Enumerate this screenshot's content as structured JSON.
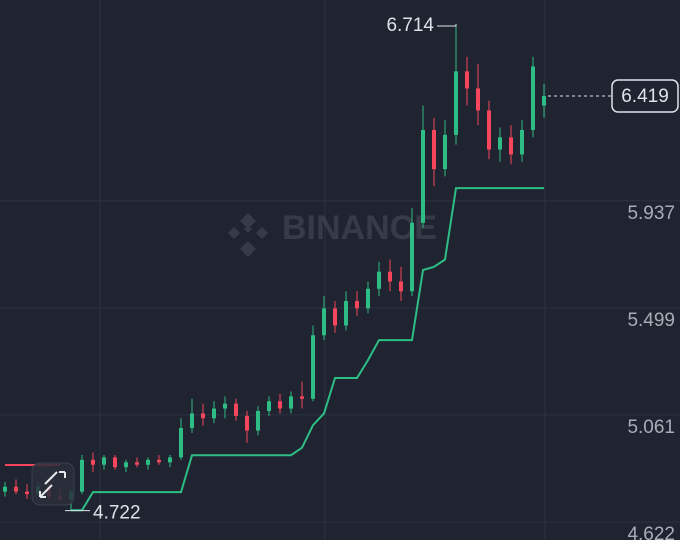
{
  "chart_data": {
    "type": "candlestick",
    "watermark": "BINANCE",
    "open": [
      4.8,
      4.82,
      4.8,
      4.79,
      4.82,
      4.78,
      4.77,
      4.8,
      4.93,
      4.91,
      4.94,
      4.9,
      4.92,
      4.91,
      4.93,
      4.92,
      4.94,
      5.06,
      5.12,
      5.1,
      5.14,
      5.16,
      5.11,
      5.05,
      5.13,
      5.17,
      5.14,
      5.19,
      5.18,
      5.44,
      5.55,
      5.48,
      5.58,
      5.55,
      5.63,
      5.7,
      5.66,
      5.62,
      5.9,
      6.28,
      6.12,
      6.26,
      6.52,
      6.45,
      6.36,
      6.2,
      6.25,
      6.18,
      6.28,
      6.38
    ],
    "high": [
      4.84,
      4.85,
      4.83,
      4.84,
      4.83,
      4.81,
      4.81,
      4.95,
      4.96,
      4.95,
      4.95,
      4.93,
      4.94,
      4.94,
      4.95,
      4.95,
      5.1,
      5.18,
      5.16,
      5.17,
      5.19,
      5.18,
      5.13,
      5.15,
      5.19,
      5.2,
      5.21,
      5.25,
      5.48,
      5.6,
      5.58,
      5.62,
      5.62,
      5.66,
      5.74,
      5.75,
      5.72,
      5.96,
      6.38,
      6.33,
      6.32,
      6.714,
      6.58,
      6.55,
      6.4,
      6.29,
      6.3,
      6.32,
      6.58,
      6.47
    ],
    "low": [
      4.78,
      4.79,
      4.77,
      4.78,
      4.77,
      4.76,
      4.722,
      4.79,
      4.88,
      4.89,
      4.89,
      4.88,
      4.9,
      4.89,
      4.91,
      4.9,
      4.93,
      5.04,
      5.07,
      5.08,
      5.1,
      5.09,
      5.0,
      5.03,
      5.11,
      5.12,
      5.12,
      5.14,
      5.17,
      5.42,
      5.45,
      5.46,
      5.52,
      5.53,
      5.6,
      5.62,
      5.58,
      5.6,
      5.88,
      6.05,
      6.09,
      6.22,
      6.38,
      6.3,
      6.16,
      6.15,
      6.14,
      6.15,
      6.25,
      6.33
    ],
    "close": [
      4.82,
      4.8,
      4.79,
      4.82,
      4.78,
      4.77,
      4.8,
      4.93,
      4.91,
      4.94,
      4.9,
      4.92,
      4.91,
      4.93,
      4.92,
      4.94,
      5.06,
      5.12,
      5.1,
      5.14,
      5.16,
      5.11,
      5.05,
      5.13,
      5.17,
      5.14,
      5.19,
      5.18,
      5.44,
      5.55,
      5.48,
      5.58,
      5.55,
      5.63,
      5.7,
      5.66,
      5.62,
      5.9,
      6.28,
      6.12,
      6.26,
      6.52,
      6.45,
      6.36,
      6.2,
      6.25,
      6.18,
      6.28,
      6.54,
      6.419
    ],
    "supertrend_up": [
      null,
      null,
      null,
      null,
      null,
      null,
      4.724,
      4.724,
      4.798,
      4.798,
      4.798,
      4.798,
      4.798,
      4.798,
      4.798,
      4.798,
      4.798,
      4.949,
      4.949,
      4.949,
      4.949,
      4.949,
      4.949,
      4.949,
      4.949,
      4.949,
      4.949,
      4.98,
      5.072,
      5.12,
      5.265,
      5.265,
      5.265,
      5.338,
      5.42,
      5.42,
      5.42,
      5.42,
      5.707,
      5.72,
      5.75,
      6.042,
      6.042,
      6.042,
      6.042,
      6.042,
      6.042,
      6.042,
      6.042,
      6.042
    ],
    "supertrend_down": [
      4.909,
      4.909,
      4.909,
      4.909,
      4.909,
      4.909,
      null,
      null,
      null,
      null,
      null,
      null,
      null,
      null,
      null,
      null,
      null,
      null,
      null,
      null,
      null,
      null,
      null,
      null,
      null,
      null,
      null,
      null,
      null,
      null,
      null,
      null,
      null,
      null,
      null,
      null,
      null,
      null,
      null,
      null,
      null,
      null,
      null,
      null,
      null,
      null,
      null,
      null,
      null,
      null
    ],
    "high_marker": 6.714,
    "low_marker": 4.722,
    "last_price": 6.419,
    "up_color": "#2ebd85",
    "down_color": "#f6465d",
    "ylim": [
      4.602,
      6.812
    ],
    "yticks": [
      4.622,
      5.061,
      5.499,
      5.937
    ],
    "grid": true
  }
}
